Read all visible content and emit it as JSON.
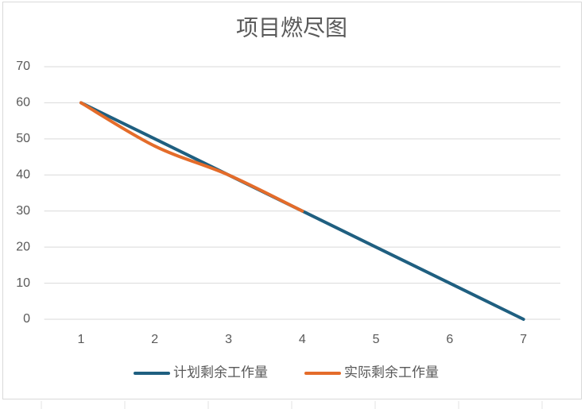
{
  "chart_data": {
    "type": "line",
    "title": "项目燃尽图",
    "categories": [
      "1",
      "2",
      "3",
      "4",
      "5",
      "6",
      "7"
    ],
    "series": [
      {
        "name": "计划剩余工作量",
        "color": "#1f5f80",
        "values": [
          60,
          50,
          40,
          30,
          20,
          10,
          0
        ]
      },
      {
        "name": "实际剩余工作量",
        "color": "#e46c2a",
        "values": [
          60,
          48,
          40,
          30,
          null,
          null,
          null
        ],
        "smooth": true
      }
    ],
    "ylim": [
      0,
      70
    ],
    "yticks": [
      0,
      10,
      20,
      30,
      40,
      50,
      60,
      70
    ],
    "grid": true,
    "legend": "bottom"
  }
}
